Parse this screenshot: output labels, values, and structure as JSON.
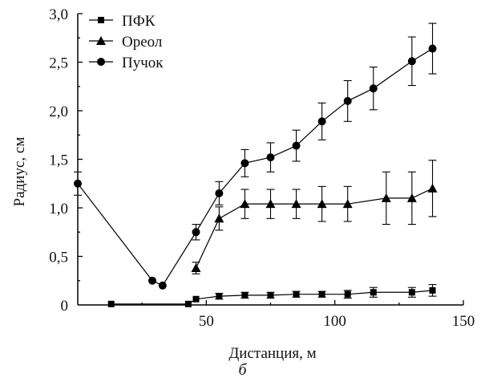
{
  "caption": "б",
  "chart_data": {
    "type": "line",
    "xlabel": "Дистанция, м",
    "ylabel": "Радиус, см",
    "xlim": [
      0,
      150
    ],
    "ylim": [
      0,
      3.0
    ],
    "x_ticks": [
      50,
      100,
      150
    ],
    "x_tick_labels": [
      "50",
      "100",
      "150"
    ],
    "y_ticks": [
      0,
      0.5,
      1.0,
      1.5,
      2.0,
      2.5,
      3.0
    ],
    "y_tick_labels": [
      "0",
      "0,5",
      "1,0",
      "1,5",
      "2,0",
      "2,5",
      "3,0"
    ],
    "grid": false,
    "legend_position": "top-left",
    "series": [
      {
        "name": "ПФК",
        "marker": "square",
        "x": [
          13,
          43,
          46,
          55,
          65,
          75,
          85,
          95,
          105,
          115,
          130,
          138
        ],
        "y": [
          0.01,
          0.01,
          0.06,
          0.09,
          0.1,
          0.1,
          0.11,
          0.11,
          0.11,
          0.13,
          0.13,
          0.15
        ],
        "err": [
          0,
          0,
          0,
          0.03,
          0.03,
          0.03,
          0.03,
          0.03,
          0.04,
          0.05,
          0.05,
          0.06
        ]
      },
      {
        "name": "Ореол",
        "marker": "triangle",
        "x": [
          46,
          55,
          65,
          75,
          85,
          95,
          105,
          120,
          130,
          138
        ],
        "y": [
          0.38,
          0.89,
          1.04,
          1.04,
          1.04,
          1.04,
          1.04,
          1.1,
          1.1,
          1.2
        ],
        "err": [
          0.06,
          0.12,
          0.15,
          0.15,
          0.15,
          0.18,
          0.18,
          0.27,
          0.27,
          0.29
        ]
      },
      {
        "name": "Пучок",
        "marker": "circle",
        "x": [
          0,
          29,
          33,
          46,
          55,
          65,
          75,
          85,
          95,
          105,
          115,
          130,
          138
        ],
        "y": [
          1.25,
          0.25,
          0.2,
          0.75,
          1.15,
          1.46,
          1.52,
          1.64,
          1.89,
          2.1,
          2.23,
          2.51,
          2.64
        ],
        "err": [
          0.12,
          0,
          0,
          0.08,
          0.12,
          0.14,
          0.15,
          0.16,
          0.19,
          0.21,
          0.22,
          0.25,
          0.26
        ]
      }
    ]
  }
}
